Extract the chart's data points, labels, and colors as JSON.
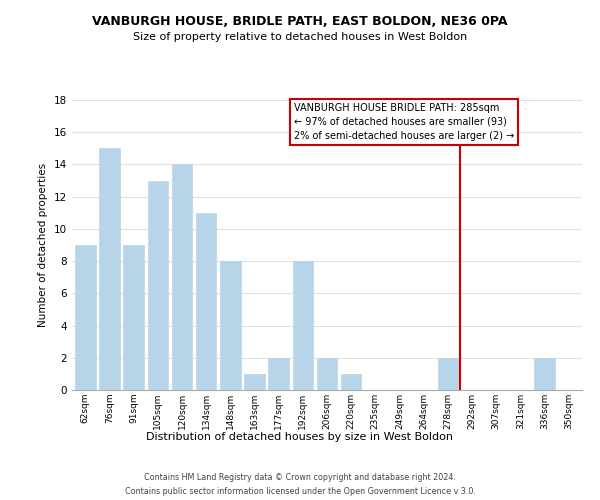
{
  "title": "VANBURGH HOUSE, BRIDLE PATH, EAST BOLDON, NE36 0PA",
  "subtitle": "Size of property relative to detached houses in West Boldon",
  "xlabel": "Distribution of detached houses by size in West Boldon",
  "ylabel": "Number of detached properties",
  "categories": [
    "62sqm",
    "76sqm",
    "91sqm",
    "105sqm",
    "120sqm",
    "134sqm",
    "148sqm",
    "163sqm",
    "177sqm",
    "192sqm",
    "206sqm",
    "220sqm",
    "235sqm",
    "249sqm",
    "264sqm",
    "278sqm",
    "292sqm",
    "307sqm",
    "321sqm",
    "336sqm",
    "350sqm"
  ],
  "values": [
    9,
    15,
    9,
    13,
    14,
    11,
    8,
    1,
    2,
    8,
    2,
    1,
    0,
    0,
    0,
    2,
    0,
    0,
    0,
    2,
    0
  ],
  "bar_color": "#b8d4e8",
  "ylim": [
    0,
    18
  ],
  "yticks": [
    0,
    2,
    4,
    6,
    8,
    10,
    12,
    14,
    16,
    18
  ],
  "vline_x": 15.5,
  "vline_color": "#cc0000",
  "annotation_title": "VANBURGH HOUSE BRIDLE PATH: 285sqm",
  "annotation_line1": "← 97% of detached houses are smaller (93)",
  "annotation_line2": "2% of semi-detached houses are larger (2) →",
  "annotation_box_color": "#ffffff",
  "annotation_border_color": "#cc0000",
  "footer1": "Contains HM Land Registry data © Crown copyright and database right 2024.",
  "footer2": "Contains public sector information licensed under the Open Government Licence v 3.0.",
  "background_color": "#ffffff",
  "grid_color": "#e0e0e0"
}
